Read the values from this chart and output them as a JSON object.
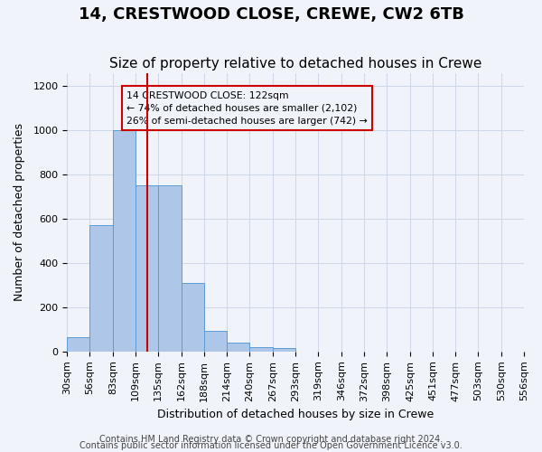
{
  "title": "14, CRESTWOOD CLOSE, CREWE, CW2 6TB",
  "subtitle": "Size of property relative to detached houses in Crewe",
  "xlabel": "Distribution of detached houses by size in Crewe",
  "ylabel": "Number of detached properties",
  "bar_values": [
    65,
    570,
    1000,
    750,
    750,
    310,
    95,
    40,
    20,
    15,
    0,
    0,
    0,
    0,
    0,
    0,
    0,
    0,
    0,
    0
  ],
  "bin_edges": [
    30,
    56,
    83,
    109,
    135,
    162,
    188,
    214,
    240,
    267,
    293,
    319,
    346,
    372,
    398,
    425,
    451,
    477,
    503,
    530,
    556
  ],
  "tick_labels": [
    "30sqm",
    "56sqm",
    "83sqm",
    "109sqm",
    "135sqm",
    "162sqm",
    "188sqm",
    "214sqm",
    "240sqm",
    "267sqm",
    "293sqm",
    "319sqm",
    "346sqm",
    "372sqm",
    "398sqm",
    "425sqm",
    "451sqm",
    "477sqm",
    "503sqm",
    "530sqm",
    "556sqm"
  ],
  "bar_color": "#aec6e8",
  "bar_edge_color": "#5b9bd5",
  "grid_color": "#d0d8e8",
  "bg_color": "#f0f4fa",
  "vline_x": 122,
  "vline_color": "#cc0000",
  "annotation_box_text": "14 CRESTWOOD CLOSE: 122sqm\n← 74% of detached houses are smaller (2,102)\n26% of semi-detached houses are larger (742) →",
  "annotation_box_color": "#cc0000",
  "ylim": [
    0,
    1260
  ],
  "yticks": [
    0,
    200,
    400,
    600,
    800,
    1000,
    1200
  ],
  "footer_line1": "Contains HM Land Registry data © Crown copyright and database right 2024.",
  "footer_line2": "Contains public sector information licensed under the Open Government Licence v3.0.",
  "title_fontsize": 13,
  "subtitle_fontsize": 11,
  "axis_label_fontsize": 9,
  "tick_fontsize": 8,
  "footer_fontsize": 7
}
